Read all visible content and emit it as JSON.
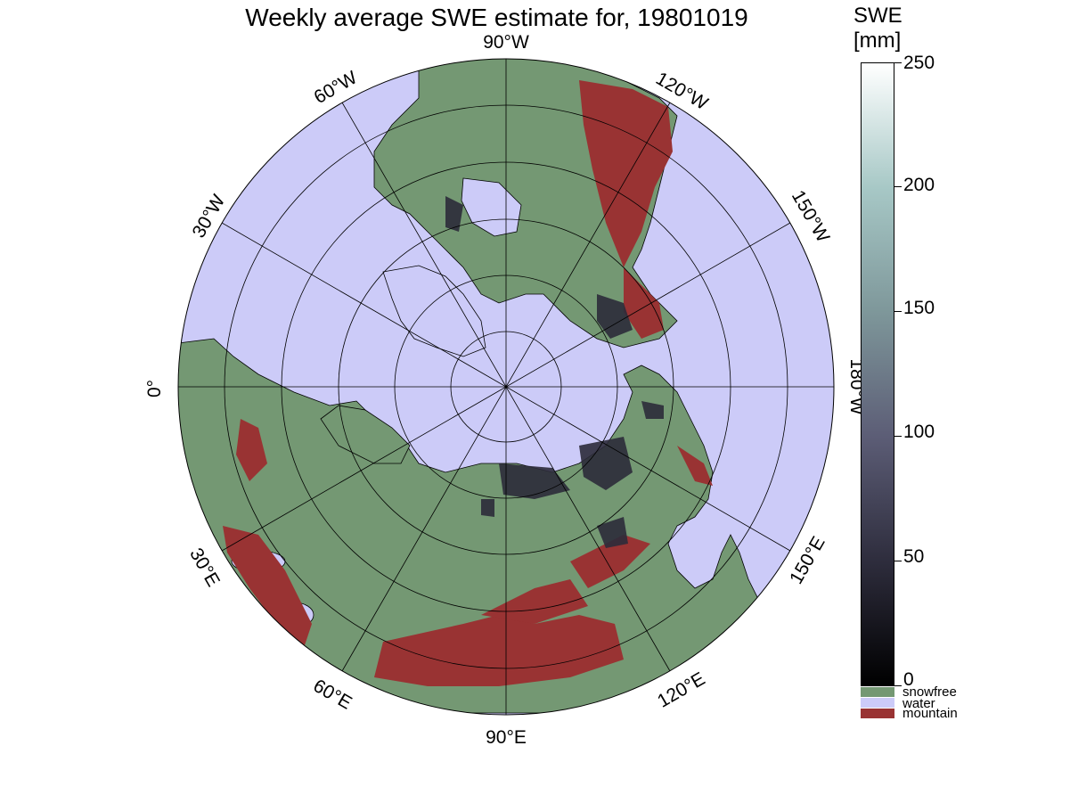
{
  "title": "Weekly average SWE estimate for, 19801019",
  "colors": {
    "water": "#cccbf8",
    "snowfree": "#749873",
    "mountain": "#993333",
    "snow_dark": "#2c2b3a",
    "land_outline": "#000000"
  },
  "longitude_labels": [
    {
      "label": "90°W"
    },
    {
      "label": "120°W"
    },
    {
      "label": "150°W"
    },
    {
      "label": "180°W"
    },
    {
      "label": "150°E"
    },
    {
      "label": "120°E"
    },
    {
      "label": "90°E"
    },
    {
      "label": "60°E"
    },
    {
      "label": "30°E"
    },
    {
      "label": "0°"
    },
    {
      "label": "30°W"
    },
    {
      "label": "60°W"
    }
  ],
  "colorbar": {
    "title_line1": "SWE",
    "title_line2": "[mm]",
    "range": [
      0,
      250
    ],
    "ticks": [
      "0",
      "50",
      "100",
      "150",
      "200",
      "250"
    ],
    "gradient_colors": [
      "#000000",
      "#2e2d3d",
      "#5c5d76",
      "#7e979a",
      "#a7c8c6",
      "#ffffff"
    ]
  },
  "legend": [
    {
      "label": "snowfree",
      "color": "#749873"
    },
    {
      "label": "water",
      "color": "#cccbf8"
    },
    {
      "label": "mountain",
      "color": "#993333"
    }
  ]
}
